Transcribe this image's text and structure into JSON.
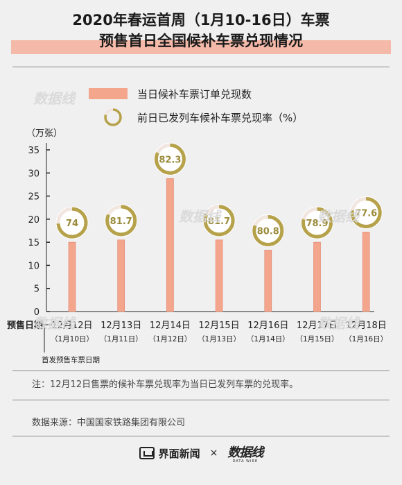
{
  "title_line1": "2020年春运首周（1月10-16日）车票",
  "title_line2": "预售首日全国候补车票兑现情况",
  "legend": {
    "bar_label": "当日候补车票订单兑现数",
    "ring_label": "前日已发列车候补车票兑现率（%）"
  },
  "y_unit": "（万张）",
  "x_row_label": "预售日期",
  "first_date_note": "首发预售车票日期",
  "footnote": "注：12月12日售票的候补车票兑现率为当日已发列车票的兑现率。",
  "source": "数据来源：中国国家铁路集团有限公司",
  "footer": {
    "brand_left": "界面新闻",
    "times": "×",
    "brand_right": "数据线",
    "brand_right_sub": "DATA WIRE"
  },
  "watermark_text": "数据线",
  "colors": {
    "bar": "#f4a68d",
    "bar_stroke": "#e07f66",
    "ring_fill": "#b5a24a",
    "ring_track": "#f2e6e0",
    "ring_value_text": "#9a8a3a"
  },
  "chart_data": {
    "type": "bar",
    "title": "2020年春运首周（1月10-16日）车票预售首日全国候补车票兑现情况",
    "ylabel": "（万张）",
    "ylim": [
      0,
      35
    ],
    "yticks": [
      0,
      5,
      10,
      15,
      20,
      25,
      30,
      35
    ],
    "categories": [
      "12月12日",
      "12月13日",
      "12月14日",
      "12月15日",
      "12月16日",
      "12月17日",
      "12月18日"
    ],
    "sub_categories": [
      "（1月10日）",
      "（1月11日）",
      "（1月12日）",
      "（1月13日）",
      "（1月14日）",
      "（1月15日）",
      "（1月16日）"
    ],
    "series": [
      {
        "name": "当日候补车票订单兑现数",
        "type": "bar",
        "values": [
          15.0,
          15.5,
          28.8,
          15.5,
          13.3,
          15.0,
          17.2
        ]
      },
      {
        "name": "前日已发列车候补车票兑现率（%）",
        "type": "ring",
        "values": [
          74,
          81.7,
          82.3,
          81.7,
          80.8,
          78.9,
          77.6
        ],
        "labels": [
          "74",
          "81.7",
          "82.3",
          "81.7",
          "80.8",
          "78.9",
          "77.6"
        ]
      }
    ],
    "grid": false,
    "legend_position": "top"
  }
}
